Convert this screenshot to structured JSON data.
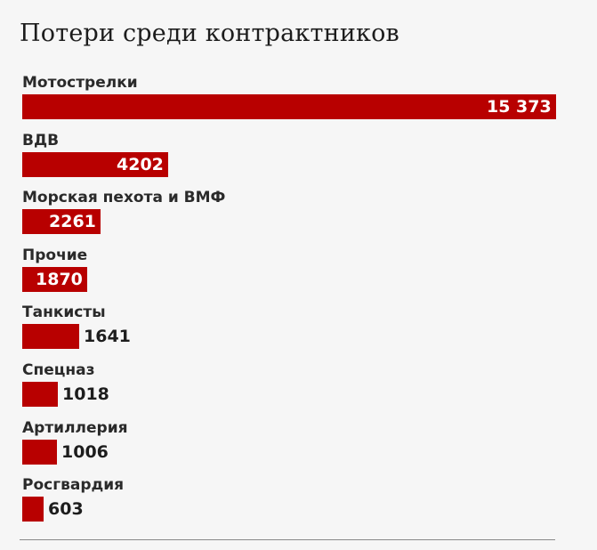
{
  "chart_data": {
    "type": "bar",
    "orientation": "horizontal",
    "title": "Потери среди контрактников",
    "categories": [
      "Мотострелки",
      "ВДВ",
      "Морская пехота и ВМФ",
      "Прочие",
      "Танкисты",
      "Спецназ",
      "Артиллерия",
      "Росгвардия"
    ],
    "values": [
      15373,
      4202,
      2261,
      1870,
      1641,
      1018,
      1006,
      603
    ],
    "value_labels": [
      "15 373",
      "4202",
      "2261",
      "1870",
      "1641",
      "1018",
      "1006",
      "603"
    ],
    "xlim": [
      0,
      15373
    ],
    "grid": false,
    "legend": "none",
    "colors": {
      "bar": "#b80000",
      "background": "#f6f6f6"
    }
  }
}
